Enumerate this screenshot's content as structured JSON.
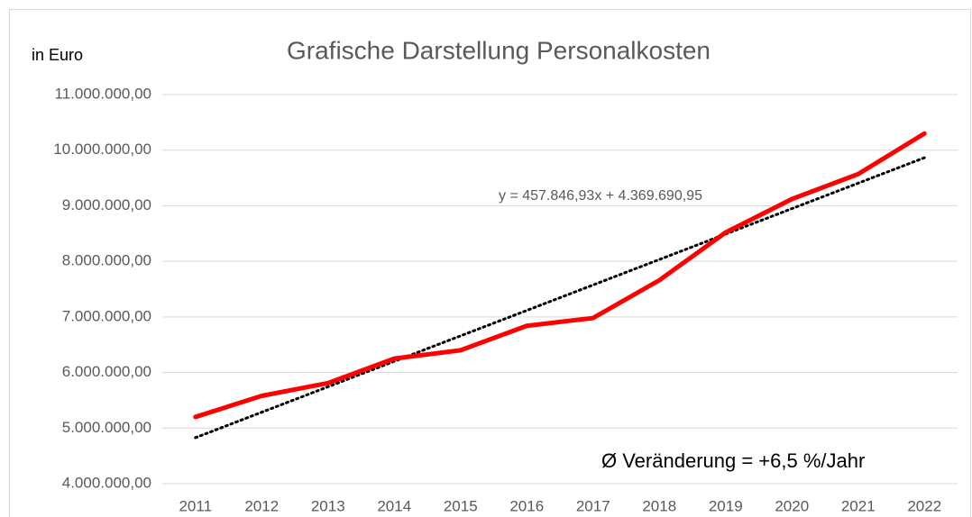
{
  "chart_data": {
    "type": "line",
    "title": "Grafische Darstellung Personalkosten",
    "y_axis_label": "in Euro",
    "annotation": "Ø Veränderung = +6,5 %/Jahr",
    "categories": [
      "2011",
      "2012",
      "2013",
      "2014",
      "2015",
      "2016",
      "2017",
      "2018",
      "2019",
      "2020",
      "2021",
      "2022"
    ],
    "series": [
      {
        "name": "Personalkosten",
        "color": "#ff0000",
        "values": [
          5200000,
          5580000,
          5810000,
          6250000,
          6400000,
          6840000,
          6980000,
          7660000,
          8520000,
          9120000,
          9570000,
          10300000
        ]
      }
    ],
    "trendline": {
      "slope": 457846.93,
      "intercept": 4369690.95,
      "color": "#000000",
      "label": "y = 457.846,93x + 4.369.690,95"
    },
    "ylim": [
      4000000,
      11000000
    ],
    "yticks": [
      {
        "value": 4000000,
        "label": "4.000.000,00"
      },
      {
        "value": 5000000,
        "label": "5.000.000,00"
      },
      {
        "value": 6000000,
        "label": "6.000.000,00"
      },
      {
        "value": 7000000,
        "label": "7.000.000,00"
      },
      {
        "value": 8000000,
        "label": "8.000.000,00"
      },
      {
        "value": 9000000,
        "label": "9.000.000,00"
      },
      {
        "value": 10000000,
        "label": "10.000.000,00"
      },
      {
        "value": 11000000,
        "label": "11.000.000,00"
      }
    ],
    "grid": true
  }
}
